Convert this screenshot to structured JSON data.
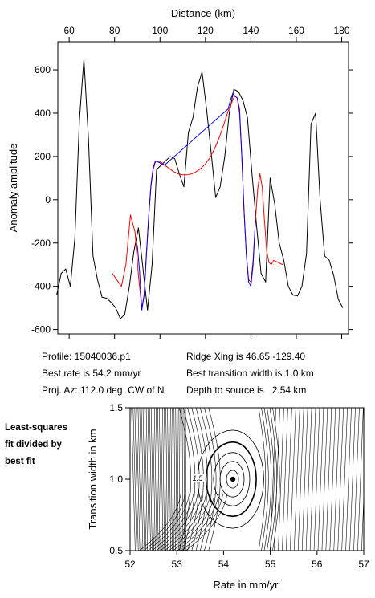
{
  "info": {
    "profile": "Profile: 15040036.p1",
    "best_rate": "Best rate is 54.2 mm/yr",
    "proj_az": "Proj. Az: 112.0 deg. CW of N",
    "ridge_xing": "Ridge Xing is 46.65 -129.40",
    "best_width": "Best transition width is 1.0 km",
    "depth": "Depth to source is   2.54 km"
  },
  "side_note": [
    "Least-squares",
    "fit divided by",
    "best fit"
  ],
  "chart_data": [
    {
      "type": "line",
      "xlabel": "Distance (km)",
      "ylabel": "Anomaly amplitude",
      "xlim": [
        55,
        183
      ],
      "ylim": [
        -620,
        730
      ],
      "x_ticks": [
        60,
        80,
        100,
        120,
        140,
        160,
        180
      ],
      "y_ticks": [
        -600,
        -400,
        -200,
        0,
        200,
        400,
        600
      ],
      "axis_position": "x-axis on top, y-axis left",
      "series": [
        {
          "color": "#000000",
          "x": [
            54.5,
            56.5,
            58.5,
            60.5,
            62.5,
            64.5,
            66.5,
            68.5,
            70.5,
            72.5,
            74.5,
            76.5,
            78.5,
            80.5,
            82.5,
            84.5,
            86.5,
            88.5,
            90.5,
            92.5,
            94.5,
            96.5,
            98.5,
            100.5,
            102.5,
            104.5,
            106.5,
            108.5,
            110.5,
            112.5,
            114.5,
            116.5,
            118.5,
            120.5,
            122.5,
            124.5,
            126.5,
            128.5,
            130.5,
            132.5,
            134.5,
            136.5,
            138.5,
            140.5,
            142.5,
            144.5,
            146.5,
            148.5,
            150.5,
            152.5,
            154.5,
            156.5,
            158.5,
            160.5,
            162.5,
            164.5,
            166.5,
            168.5,
            170.5,
            172.5,
            174.5,
            176.5,
            178.5,
            180.5
          ],
          "y": [
            -440,
            -340,
            -320,
            -400,
            -180,
            370,
            650,
            280,
            -260,
            -370,
            -450,
            -455,
            -475,
            -500,
            -550,
            -530,
            -400,
            -240,
            -130,
            -320,
            -510,
            -300,
            140,
            160,
            180,
            200,
            190,
            120,
            60,
            310,
            380,
            520,
            590,
            420,
            220,
            10,
            60,
            200,
            400,
            510,
            500,
            460,
            380,
            120,
            -120,
            -340,
            -380,
            100,
            -20,
            -200,
            -280,
            -400,
            -440,
            -445,
            -400,
            -250,
            350,
            400,
            0,
            -260,
            -280,
            -350,
            -460,
            -500
          ]
        },
        {
          "color": "#ff0000",
          "x": [
            79,
            81,
            83,
            85,
            87,
            89,
            90.5,
            92,
            93,
            94,
            95,
            96,
            97,
            98,
            99,
            100,
            101,
            102,
            104,
            106,
            108,
            110,
            112,
            114,
            116,
            118,
            120,
            122,
            124,
            126,
            128,
            130,
            132,
            133,
            134,
            135,
            136,
            137,
            138,
            139,
            140,
            141,
            142,
            143,
            144,
            145,
            146,
            147,
            148,
            149,
            150,
            152,
            154
          ],
          "y": [
            -340,
            -370,
            -400,
            -300,
            -70,
            -150,
            -350,
            -500,
            -440,
            -250,
            -80,
            60,
            140,
            175,
            180,
            175,
            170,
            160,
            145,
            130,
            120,
            115,
            115,
            120,
            130,
            145,
            165,
            195,
            235,
            285,
            345,
            410,
            460,
            480,
            470,
            400,
            200,
            -50,
            -250,
            -370,
            -380,
            -280,
            -100,
            50,
            120,
            60,
            -100,
            -240,
            -290,
            -300,
            -280,
            -290,
            -300
          ]
        },
        {
          "color": "#0000ff",
          "x": [
            90,
            91,
            92,
            93,
            94,
            95,
            96,
            97,
            98,
            99,
            100,
            101,
            102,
            130,
            131,
            132,
            133,
            134,
            135,
            136,
            137,
            138,
            139,
            140,
            141,
            142
          ],
          "y": [
            -210,
            -330,
            -510,
            -440,
            -260,
            -80,
            70,
            150,
            180,
            175,
            170,
            165,
            160,
            420,
            460,
            490,
            480,
            470,
            420,
            200,
            -50,
            -250,
            -380,
            -400,
            -300,
            -100
          ]
        }
      ]
    },
    {
      "type": "contour",
      "xlabel": "Rate in mm/yr",
      "ylabel": "Transition width in km",
      "xlim": [
        52,
        57
      ],
      "ylim": [
        0.5,
        1.5
      ],
      "x_ticks": [
        52,
        53,
        54,
        55,
        56,
        57
      ],
      "y_ticks": [
        0.5,
        1.0,
        1.5
      ],
      "best_fit": {
        "rate": 54.2,
        "width": 1.0
      },
      "contour_label": "1.5"
    }
  ]
}
